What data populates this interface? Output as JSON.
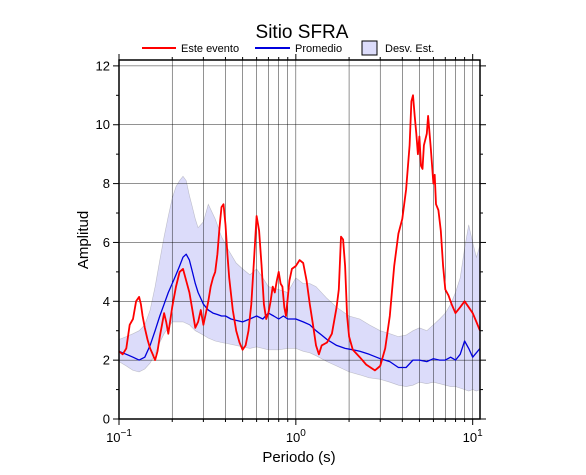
{
  "chart_data": {
    "type": "line",
    "title": "Sitio SFRA",
    "xlabel": "Periodo (s)",
    "ylabel": "Amplitud",
    "x_scale": "log",
    "xlim": [
      0.1,
      11
    ],
    "ylim": [
      0,
      12.2
    ],
    "x_ticks": [
      {
        "value": 0.1,
        "base": "10",
        "exp": "−1"
      },
      {
        "value": 1,
        "base": "10",
        "exp": "0"
      },
      {
        "value": 10,
        "base": "10",
        "exp": "1"
      }
    ],
    "y_ticks": [
      {
        "value": 0,
        "label": "0"
      },
      {
        "value": 2,
        "label": "2"
      },
      {
        "value": 4,
        "label": "4"
      },
      {
        "value": 6,
        "label": "6"
      },
      {
        "value": 8,
        "label": "8"
      },
      {
        "value": 10,
        "label": "10"
      },
      {
        "value": 12,
        "label": "12"
      }
    ],
    "grid": true,
    "legend_position": "top",
    "colors": {
      "event": "#ff0000",
      "mean": "#0000dd",
      "band_fill": "#dcdcfa",
      "band_edge": "#333333",
      "grid": "#000000"
    },
    "series": [
      {
        "name": "Este evento",
        "x": [
          0.1,
          0.105,
          0.11,
          0.115,
          0.12,
          0.125,
          0.13,
          0.133,
          0.136,
          0.14,
          0.145,
          0.15,
          0.155,
          0.16,
          0.165,
          0.17,
          0.175,
          0.18,
          0.185,
          0.19,
          0.2,
          0.21,
          0.22,
          0.23,
          0.24,
          0.25,
          0.26,
          0.27,
          0.28,
          0.29,
          0.3,
          0.31,
          0.32,
          0.33,
          0.34,
          0.35,
          0.36,
          0.37,
          0.38,
          0.39,
          0.4,
          0.41,
          0.42,
          0.44,
          0.46,
          0.48,
          0.5,
          0.52,
          0.54,
          0.56,
          0.58,
          0.6,
          0.62,
          0.64,
          0.66,
          0.68,
          0.7,
          0.72,
          0.74,
          0.76,
          0.78,
          0.8,
          0.82,
          0.84,
          0.86,
          0.88,
          0.9,
          0.92,
          0.95,
          1.0,
          1.05,
          1.1,
          1.15,
          1.2,
          1.25,
          1.3,
          1.35,
          1.4,
          1.5,
          1.6,
          1.7,
          1.75,
          1.8,
          1.85,
          1.9,
          1.95,
          2.0,
          2.1,
          2.3,
          2.5,
          2.8,
          3.0,
          3.2,
          3.4,
          3.6,
          3.8,
          4.0,
          4.2,
          4.4,
          4.5,
          4.6,
          4.7,
          4.8,
          4.9,
          5.0,
          5.1,
          5.2,
          5.3,
          5.5,
          5.6,
          5.8,
          6.0,
          6.1,
          6.2,
          6.4,
          6.6,
          6.8,
          7.0,
          7.3,
          7.6,
          8.0,
          8.5,
          9.0,
          9.5,
          10.0,
          10.5,
          11.0
        ],
        "y": [
          2.3,
          2.2,
          2.4,
          3.2,
          3.4,
          4.0,
          4.15,
          3.9,
          3.5,
          3.1,
          2.7,
          2.4,
          2.2,
          2.0,
          2.3,
          2.8,
          3.2,
          3.6,
          3.3,
          2.9,
          3.8,
          4.5,
          5.0,
          5.1,
          4.7,
          4.3,
          3.7,
          3.1,
          3.3,
          3.7,
          3.2,
          3.6,
          4.0,
          4.5,
          4.8,
          5.0,
          5.6,
          6.5,
          7.2,
          7.3,
          6.6,
          5.6,
          4.8,
          3.7,
          3.0,
          2.6,
          2.35,
          2.5,
          3.0,
          3.9,
          5.4,
          6.9,
          6.4,
          5.2,
          3.9,
          3.4,
          3.6,
          4.0,
          4.5,
          4.3,
          4.7,
          5.0,
          4.6,
          4.5,
          3.8,
          3.5,
          4.1,
          4.7,
          5.1,
          5.2,
          5.4,
          5.3,
          4.7,
          3.9,
          3.2,
          2.5,
          2.2,
          2.5,
          2.6,
          2.9,
          3.8,
          4.4,
          6.2,
          6.1,
          5.2,
          3.5,
          2.8,
          2.35,
          2.1,
          1.85,
          1.65,
          1.8,
          2.4,
          3.5,
          5.2,
          6.3,
          6.8,
          7.8,
          9.3,
          10.8,
          11.0,
          10.3,
          9.7,
          9.0,
          9.6,
          8.6,
          8.5,
          9.3,
          9.7,
          10.3,
          9.2,
          8.0,
          8.3,
          7.3,
          7.1,
          6.4,
          5.2,
          4.4,
          4.2,
          3.9,
          3.6,
          3.8,
          4.0,
          3.8,
          3.6,
          3.3,
          3.0
        ]
      },
      {
        "name": "Promedio",
        "x": [
          0.1,
          0.11,
          0.12,
          0.13,
          0.14,
          0.15,
          0.16,
          0.17,
          0.18,
          0.19,
          0.2,
          0.21,
          0.22,
          0.23,
          0.24,
          0.25,
          0.26,
          0.27,
          0.28,
          0.29,
          0.3,
          0.32,
          0.34,
          0.36,
          0.38,
          0.4,
          0.43,
          0.46,
          0.5,
          0.55,
          0.6,
          0.65,
          0.7,
          0.75,
          0.8,
          0.85,
          0.9,
          0.95,
          1.0,
          1.1,
          1.2,
          1.3,
          1.4,
          1.5,
          1.7,
          1.9,
          2.1,
          2.3,
          2.6,
          3.0,
          3.4,
          3.8,
          4.2,
          4.6,
          5.0,
          5.5,
          6.0,
          6.5,
          7.0,
          7.5,
          8.0,
          8.5,
          9.0,
          9.5,
          10.0,
          11.0
        ],
        "y": [
          2.3,
          2.2,
          2.1,
          2.0,
          2.1,
          2.5,
          3.0,
          3.5,
          3.9,
          4.3,
          4.6,
          4.9,
          5.2,
          5.5,
          5.6,
          5.4,
          5.0,
          4.6,
          4.3,
          4.1,
          3.9,
          3.7,
          3.6,
          3.55,
          3.5,
          3.5,
          3.4,
          3.35,
          3.3,
          3.4,
          3.5,
          3.4,
          3.6,
          3.5,
          3.4,
          3.5,
          3.4,
          3.4,
          3.4,
          3.3,
          3.2,
          3.0,
          2.85,
          2.7,
          2.5,
          2.4,
          2.35,
          2.3,
          2.2,
          2.05,
          1.95,
          1.75,
          1.75,
          2.0,
          2.0,
          1.95,
          2.05,
          2.0,
          2.0,
          2.1,
          2.0,
          2.2,
          2.65,
          2.4,
          2.1,
          2.4
        ]
      },
      {
        "name": "Desv. Est.",
        "x": [
          0.1,
          0.11,
          0.12,
          0.13,
          0.14,
          0.15,
          0.16,
          0.17,
          0.18,
          0.19,
          0.2,
          0.21,
          0.22,
          0.23,
          0.24,
          0.25,
          0.26,
          0.27,
          0.28,
          0.3,
          0.32,
          0.35,
          0.38,
          0.42,
          0.46,
          0.5,
          0.55,
          0.6,
          0.65,
          0.7,
          0.8,
          0.9,
          1.0,
          1.1,
          1.2,
          1.3,
          1.5,
          1.7,
          2.0,
          2.3,
          2.6,
          3.0,
          3.4,
          3.8,
          4.2,
          4.6,
          5.0,
          5.5,
          6.0,
          6.5,
          7.0,
          7.5,
          8.0,
          8.5,
          9.0,
          9.5,
          10.0,
          10.5,
          11.0
        ],
        "upper": [
          2.7,
          2.8,
          2.9,
          3.0,
          3.2,
          3.7,
          4.5,
          5.4,
          6.2,
          6.9,
          7.5,
          7.9,
          8.1,
          8.25,
          8.1,
          7.6,
          7.2,
          6.8,
          6.5,
          6.7,
          7.3,
          6.8,
          6.2,
          5.7,
          5.3,
          5.1,
          4.9,
          5.1,
          4.8,
          4.5,
          4.4,
          4.3,
          4.8,
          4.6,
          4.6,
          4.5,
          4.1,
          3.8,
          3.5,
          3.4,
          3.2,
          3.0,
          2.9,
          2.8,
          2.85,
          3.0,
          3.1,
          3.0,
          3.2,
          3.4,
          3.6,
          3.9,
          4.3,
          4.8,
          5.8,
          6.6,
          6.0,
          5.5,
          5.9
        ],
        "lower": [
          1.95,
          1.8,
          1.65,
          1.6,
          1.7,
          1.9,
          2.2,
          2.6,
          2.9,
          3.1,
          3.3,
          3.3,
          3.3,
          3.3,
          3.25,
          3.2,
          3.1,
          3.0,
          2.95,
          2.85,
          2.75,
          2.65,
          2.6,
          2.55,
          2.5,
          2.45,
          2.4,
          2.45,
          2.4,
          2.35,
          2.35,
          2.4,
          2.4,
          2.3,
          2.25,
          2.15,
          1.95,
          1.8,
          1.6,
          1.5,
          1.4,
          1.35,
          1.25,
          1.15,
          1.1,
          1.15,
          1.25,
          1.2,
          1.25,
          1.2,
          1.15,
          1.1,
          1.1,
          1.05,
          1.0,
          0.95,
          1.0,
          0.95,
          1.0
        ]
      }
    ]
  }
}
